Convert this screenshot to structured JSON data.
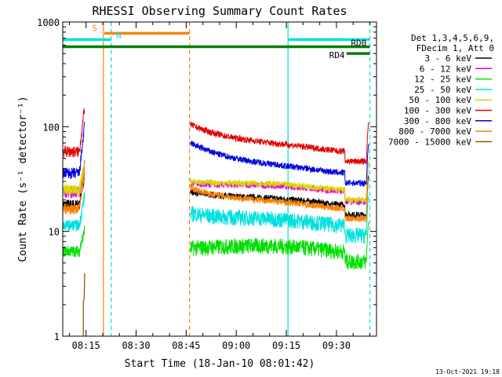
{
  "chart_data": {
    "type": "line",
    "title": "RHESSI Observing Summary Count Rates",
    "xlabel": "Start Time (18-Jan-10 08:01:42)",
    "ylabel": "Count Rate (s⁻¹ detector⁻¹)",
    "yscale": "log",
    "ylim": [
      1,
      1000
    ],
    "xlim_minutes": [
      8.03,
      102
    ],
    "x_ticks": [
      {
        "label": "08:15",
        "minute": 15
      },
      {
        "label": "08:30",
        "minute": 30
      },
      {
        "label": "08:45",
        "minute": 45
      },
      {
        "label": "09:00",
        "minute": 60
      },
      {
        "label": "09:15",
        "minute": 75
      },
      {
        "label": "09:30",
        "minute": 90
      }
    ],
    "y_ticks": [
      {
        "label": "1",
        "value": 1
      },
      {
        "label": "10",
        "value": 10
      },
      {
        "label": "100",
        "value": 100
      },
      {
        "label": "1000",
        "value": 1000
      }
    ],
    "legend_header": [
      "Det 1,3,4,5,6,9,",
      "FDecim 1, Att 0"
    ],
    "series": [
      {
        "name": "3 - 6 keV",
        "color": "#000000",
        "base": 18,
        "peak": 22,
        "spike": 24
      },
      {
        "name": "6 - 12 keV",
        "color": "#e000e0",
        "base": 24,
        "peak": 26,
        "spike": 29
      },
      {
        "name": "12 - 25 keV",
        "color": "#00e000",
        "base": 6.5,
        "peak": 8,
        "spike": 7
      },
      {
        "name": "25 - 50 keV",
        "color": "#00e0e0",
        "base": 11.5,
        "peak": 14,
        "spike": 15
      },
      {
        "name": "50 - 100 keV",
        "color": "#d8d800",
        "base": 25,
        "peak": 28,
        "spike": 30
      },
      {
        "name": "100 - 300 keV",
        "color": "#e00000",
        "base": 58,
        "peak": 80,
        "spike": 105
      },
      {
        "name": "300 - 800 keV",
        "color": "#0000e0",
        "base": 36,
        "peak": 48,
        "spike": 70
      },
      {
        "name": "800 - 7000 keV",
        "color": "#ff8000",
        "base": 16.5,
        "peak": 21,
        "spike": 26
      },
      {
        "name": "7000 - 15000 keV",
        "color": "#8b5a00",
        "base": 1,
        "peak": 1,
        "spike": 4
      }
    ],
    "flags": [
      {
        "label": "S",
        "color": "#ff8000",
        "start_min": 20.5,
        "end_min": 46.0,
        "value": 780
      },
      {
        "label": "N",
        "color": "#00e0e0",
        "start_min": 8.03,
        "end_min": 22.5,
        "value": 680
      },
      {
        "label": "RD0",
        "color": "#00e0e0",
        "start_min": 75.5,
        "end_min": 100.0,
        "value": 680
      },
      {
        "label": "",
        "color": "#008000",
        "start_min": 8.03,
        "end_min": 100.0,
        "value": 580
      },
      {
        "label": "RD4",
        "color": "#008000",
        "start_min": 93.0,
        "end_min": 100.0,
        "value": 500
      }
    ],
    "markers": [
      {
        "color": "#00e0e0",
        "minute": 8.0,
        "style": "solid"
      },
      {
        "color": "#00e0e0",
        "minute": 22.5,
        "style": "dashed"
      },
      {
        "color": "#ff8000",
        "minute": 20.2,
        "style": "solid"
      },
      {
        "color": "#ff8000",
        "minute": 46.0,
        "style": "dashed"
      },
      {
        "color": "#00e0e0",
        "minute": 75.5,
        "style": "solid"
      },
      {
        "color": "#00e0e0",
        "minute": 100.0,
        "style": "dashed"
      }
    ],
    "grid": false
  },
  "footer": {
    "date_stamp": "13-Oct-2021 19:18"
  }
}
